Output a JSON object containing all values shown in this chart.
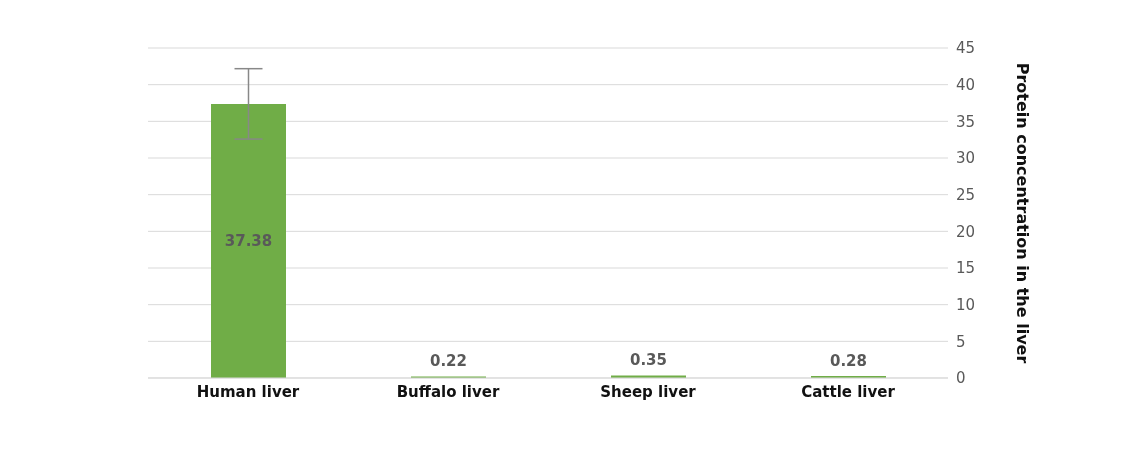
{
  "chart_data": {
    "type": "bar",
    "categories": [
      "Human liver",
      "Buffalo liver",
      "Sheep liver",
      "Cattle liver"
    ],
    "values": [
      37.38,
      0.22,
      0.35,
      0.28
    ],
    "errors": [
      4.8,
      null,
      null,
      null
    ],
    "color": "#70ad47",
    "ylabel": "Protein concentration in the liver",
    "ylim": [
      0,
      45
    ],
    "yticks": [
      0,
      5,
      10,
      15,
      20,
      25,
      30,
      35,
      40,
      45
    ],
    "grid": "y",
    "data_labels": true
  }
}
